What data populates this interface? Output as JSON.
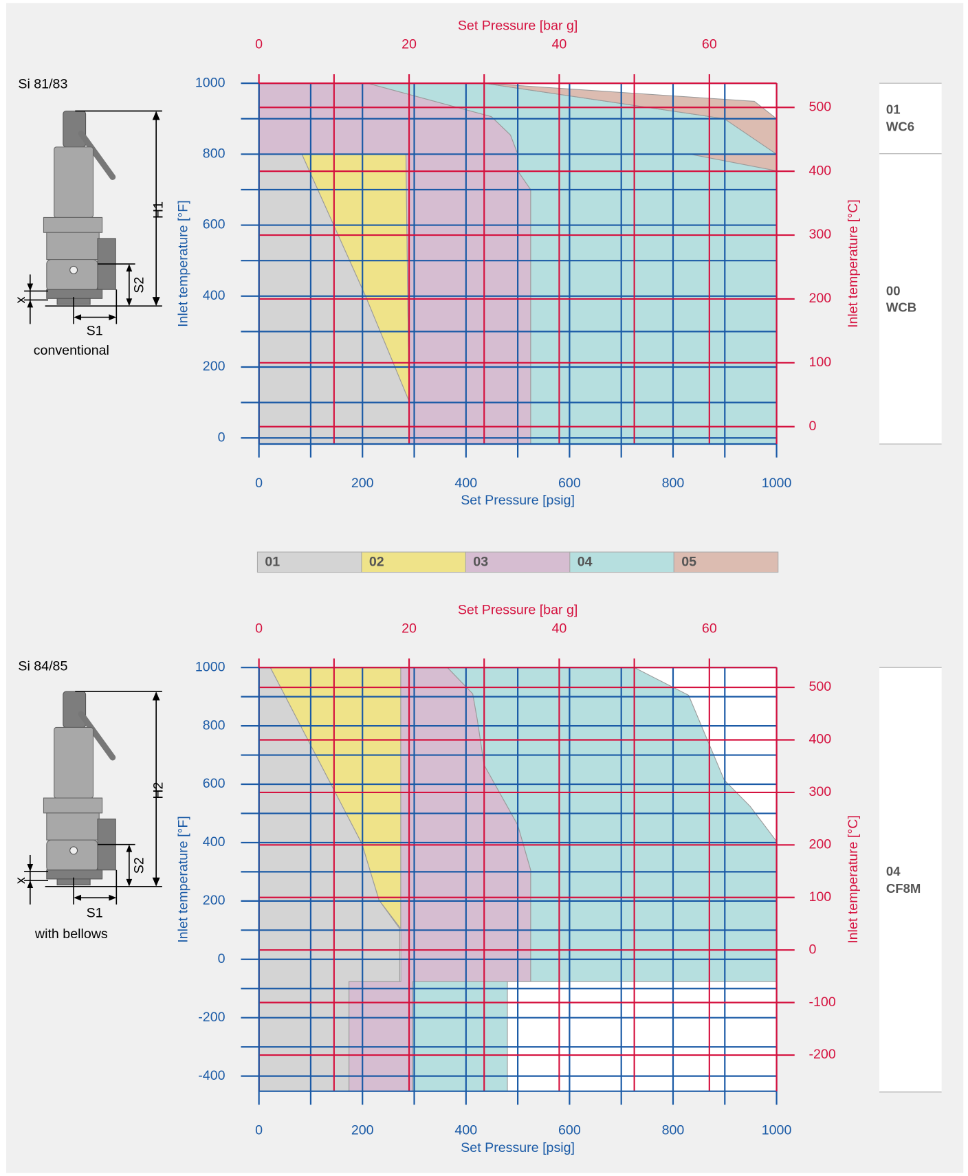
{
  "chart_data": [
    {
      "type": "area",
      "x_label": "Set Pressure [psig]",
      "x2_label": "Set Pressure [bar g]",
      "y_label": "Inlet temperature [°F]",
      "y2_label": "Inlet temperature [°C]",
      "primary_color": "#1a5aa6",
      "secondary_color": "#d5123f",
      "grid": true,
      "xlim": [
        0,
        1000
      ],
      "xticks": [
        0,
        200,
        400,
        600,
        800,
        1000
      ],
      "xgrid": [
        0,
        100,
        200,
        300,
        400,
        500,
        600,
        700,
        800,
        900,
        1000
      ],
      "x2lim": [
        0,
        68.95
      ],
      "x2ticks": [
        0,
        20,
        40,
        60
      ],
      "x2grid": [
        0,
        10,
        20,
        30,
        40,
        50,
        60
      ],
      "ylim": [
        -17,
        1000
      ],
      "yticks": [
        0,
        200,
        400,
        600,
        800,
        1000
      ],
      "ygrid": [
        0,
        100,
        200,
        300,
        400,
        500,
        600,
        700,
        800,
        900,
        1000
      ],
      "y2lim": [
        -27.2,
        537.8
      ],
      "y2ticks": [
        0,
        100,
        200,
        300,
        400,
        500
      ],
      "series": [
        {
          "name": "01",
          "color": "#d4d4d4",
          "x": [
            0,
            0,
            83,
            206,
            290,
            290
          ],
          "values": [
            -17,
            800,
            800,
            400,
            104,
            -17
          ]
        },
        {
          "name": "02",
          "color": "#efe389",
          "x": [
            83,
            284,
            290,
            206
          ],
          "values": [
            800,
            800,
            104,
            400
          ]
        },
        {
          "name": "03",
          "color": "#d6bdd1",
          "x": [
            0,
            210,
            449,
            486,
            500,
            500,
            525,
            525,
            290,
            290,
            284,
            0
          ],
          "values": [
            1000,
            1000,
            906,
            854,
            800,
            753,
            700,
            -17,
            -17,
            104,
            800,
            800
          ]
        },
        {
          "name": "04",
          "color": "#b6dfdf",
          "x": [
            210,
            435,
            899,
            1000,
            1000,
            525,
            525,
            500,
            500,
            486,
            449
          ],
          "values": [
            1000,
            1000,
            900,
            800,
            -17,
            -17,
            700,
            753,
            800,
            854,
            906
          ]
        },
        {
          "name": "05",
          "color": "#dcbcb1",
          "x": [
            435,
            957,
            1000,
            1000,
            899,
            null,
            833,
            1000,
            1000
          ],
          "values": [
            1000,
            949,
            900,
            800,
            900,
            null,
            800,
            800,
            753
          ]
        }
      ]
    },
    {
      "type": "area",
      "x_label": "Set Pressure [psig]",
      "x2_label": "Set Pressure [bar g]",
      "y_label": "Inlet temperature [°F]",
      "y2_label": "Inlet temperature [°C]",
      "primary_color": "#1a5aa6",
      "secondary_color": "#d5123f",
      "grid": true,
      "xlim": [
        0,
        1000
      ],
      "xticks": [
        0,
        200,
        400,
        600,
        800,
        1000
      ],
      "xgrid": [
        0,
        100,
        200,
        300,
        400,
        500,
        600,
        700,
        800,
        900,
        1000
      ],
      "x2lim": [
        0,
        68.95
      ],
      "x2ticks": [
        0,
        20,
        40,
        60
      ],
      "x2grid": [
        0,
        10,
        20,
        30,
        40,
        50,
        60
      ],
      "ylim": [
        -452,
        1000
      ],
      "yticks": [
        -400,
        -200,
        0,
        200,
        400,
        600,
        800,
        1000
      ],
      "ygrid": [
        -400,
        -300,
        -200,
        -100,
        0,
        100,
        200,
        300,
        400,
        500,
        600,
        700,
        800,
        900,
        1000
      ],
      "y2lim": [
        -268.9,
        537.8
      ],
      "y2ticks": [
        -200,
        -100,
        0,
        100,
        200,
        300,
        400,
        500
      ],
      "series": [
        {
          "name": "01",
          "color": "#d4d4d4",
          "x": [
            0,
            0,
            22,
            199,
            232,
            272,
            272,
            174,
            174
          ],
          "values": [
            -452,
            1000,
            1000,
            396,
            203,
            105,
            -76,
            -76,
            -452
          ]
        },
        {
          "name": "02",
          "color": "#efe389",
          "x": [
            22,
            274,
            274,
            232,
            199
          ],
          "values": [
            1000,
            1000,
            105,
            203,
            396
          ]
        },
        {
          "name": "03",
          "color": "#d6bdd1",
          "x": [
            274,
            364,
            413,
            422,
            435,
            500,
            525,
            525,
            297,
            297,
            174,
            174,
            274
          ],
          "values": [
            1000,
            1000,
            910,
            820,
            666,
            460,
            306,
            -76,
            -76,
            -452,
            -452,
            -76,
            -76
          ]
        },
        {
          "name": "04",
          "color": "#b6dfdf",
          "x": [
            364,
            725,
            830,
            899,
            949,
            1000,
            1000,
            480,
            480,
            297,
            297,
            525,
            525,
            500,
            435,
            422,
            413
          ],
          "values": [
            1000,
            1000,
            905,
            614,
            524,
            404,
            -76,
            -76,
            -452,
            -452,
            -76,
            -76,
            306,
            460,
            666,
            820,
            910
          ]
        }
      ]
    }
  ],
  "valves": [
    {
      "model": "Si 81/83",
      "type": "conventional",
      "height": "H1",
      "s1": "S1",
      "s2": "S2",
      "x": "x"
    },
    {
      "model": "Si 84/85",
      "type": "with bellows",
      "height": "H2",
      "s1": "S1",
      "s2": "S2",
      "x": "x"
    }
  ],
  "materials": [
    [
      {
        "code": "01",
        "name": "WC6"
      },
      {
        "code": "00",
        "name": "WCB"
      }
    ],
    [
      {
        "code": "04",
        "name": "CF8M"
      }
    ]
  ]
}
